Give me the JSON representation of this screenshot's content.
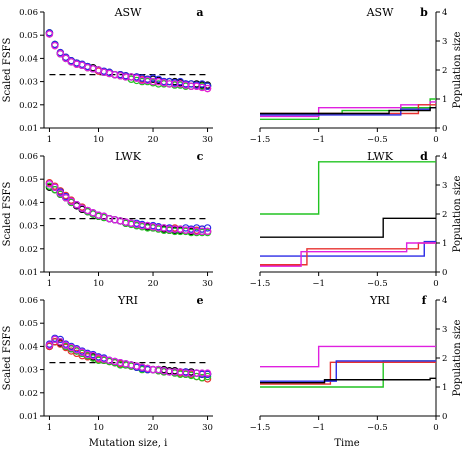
{
  "figure": {
    "left_ylabel": "Scaled FSFS",
    "right_ylabel": "Population size",
    "left_xlabel": "Mutation size, i",
    "right_xlabel": "Time"
  },
  "colors": {
    "red": "#e8312f",
    "green": "#22c422",
    "blue": "#2a2ae6",
    "magenta": "#e020e0",
    "black": "#000000"
  },
  "chart_data": [
    {
      "id": "a",
      "type": "scatter",
      "title": "ASW",
      "letter": "a",
      "xlim": [
        0,
        31
      ],
      "ylim": [
        0.01,
        0.06
      ],
      "xticks": [
        1,
        10,
        20,
        30
      ],
      "yticks": [
        0.01,
        0.02,
        0.03,
        0.04,
        0.05,
        0.06
      ],
      "reference_line": 0.033,
      "x": [
        1,
        2,
        3,
        4,
        5,
        6,
        7,
        8,
        9,
        10,
        11,
        12,
        13,
        14,
        15,
        16,
        17,
        18,
        19,
        20,
        21,
        22,
        23,
        24,
        25,
        26,
        27,
        28,
        29,
        30
      ],
      "series": [
        {
          "color": "black",
          "values": [
            0.051,
            0.046,
            0.042,
            0.04,
            0.039,
            0.038,
            0.037,
            0.0365,
            0.036,
            0.035,
            0.034,
            0.034,
            0.033,
            0.033,
            0.0325,
            0.032,
            0.032,
            0.0315,
            0.031,
            0.031,
            0.0305,
            0.03,
            0.03,
            0.03,
            0.0295,
            0.029,
            0.029,
            0.029,
            0.0285,
            0.0285
          ]
        },
        {
          "color": "red",
          "values": [
            0.0505,
            0.0455,
            0.0425,
            0.0405,
            0.0385,
            0.0375,
            0.037,
            0.036,
            0.0355,
            0.0345,
            0.034,
            0.0335,
            0.033,
            0.0325,
            0.032,
            0.032,
            0.0315,
            0.031,
            0.0305,
            0.03,
            0.03,
            0.0295,
            0.029,
            0.029,
            0.029,
            0.0285,
            0.028,
            0.028,
            0.0275,
            0.027
          ]
        },
        {
          "color": "green",
          "values": [
            0.051,
            0.046,
            0.042,
            0.04,
            0.0385,
            0.038,
            0.037,
            0.036,
            0.0355,
            0.035,
            0.034,
            0.0335,
            0.033,
            0.0325,
            0.032,
            0.031,
            0.0305,
            0.03,
            0.03,
            0.0295,
            0.029,
            0.029,
            0.029,
            0.0285,
            0.0285,
            0.028,
            0.028,
            0.0285,
            0.028,
            0.028
          ]
        },
        {
          "color": "blue",
          "values": [
            0.051,
            0.046,
            0.0425,
            0.0405,
            0.039,
            0.038,
            0.0375,
            0.0365,
            0.0355,
            0.035,
            0.0345,
            0.034,
            0.033,
            0.033,
            0.0325,
            0.032,
            0.032,
            0.0315,
            0.031,
            0.0315,
            0.031,
            0.03,
            0.03,
            0.0295,
            0.03,
            0.029,
            0.029,
            0.0285,
            0.029,
            0.028
          ]
        },
        {
          "color": "magenta",
          "values": [
            0.0505,
            0.0455,
            0.042,
            0.04,
            0.0385,
            0.0375,
            0.037,
            0.036,
            0.0355,
            0.035,
            0.034,
            0.0335,
            0.033,
            0.0325,
            0.032,
            0.032,
            0.0315,
            0.0305,
            0.0305,
            0.03,
            0.03,
            0.0295,
            0.029,
            0.029,
            0.029,
            0.0285,
            0.028,
            0.028,
            0.0275,
            0.027
          ]
        }
      ]
    },
    {
      "id": "b",
      "type": "step",
      "title": "ASW",
      "letter": "b",
      "xlim": [
        -1.5,
        0
      ],
      "ylim": [
        0,
        4
      ],
      "xticks": [
        -1.5,
        -1,
        -0.5,
        0
      ],
      "yticks": [
        0,
        1,
        2,
        3,
        4
      ],
      "series": [
        {
          "color": "green",
          "steps": [
            [
              -1.5,
              0.3
            ],
            [
              -1.0,
              0.5
            ],
            [
              -0.8,
              0.6
            ],
            [
              -0.5,
              0.6
            ],
            [
              -0.3,
              0.7
            ],
            [
              -0.05,
              1.0
            ]
          ]
        },
        {
          "color": "magenta",
          "steps": [
            [
              -1.5,
              0.4
            ],
            [
              -1.0,
              0.7
            ],
            [
              -0.3,
              0.8
            ],
            [
              -0.05,
              0.9
            ]
          ]
        },
        {
          "color": "red",
          "steps": [
            [
              -1.5,
              0.5
            ],
            [
              -0.65,
              0.5
            ],
            [
              -0.15,
              0.8
            ]
          ]
        },
        {
          "color": "blue",
          "steps": [
            [
              -1.5,
              0.45
            ],
            [
              -0.3,
              0.65
            ],
            [
              -0.05,
              0.7
            ]
          ]
        },
        {
          "color": "black",
          "steps": [
            [
              -1.5,
              0.5
            ],
            [
              -0.4,
              0.6
            ],
            [
              -0.05,
              0.7
            ]
          ]
        }
      ]
    },
    {
      "id": "c",
      "type": "scatter",
      "title": "LWK",
      "letter": "c",
      "xlim": [
        0,
        31
      ],
      "ylim": [
        0.01,
        0.06
      ],
      "xticks": [
        1,
        10,
        20,
        30
      ],
      "yticks": [
        0.01,
        0.02,
        0.03,
        0.04,
        0.05,
        0.06
      ],
      "reference_line": 0.033,
      "x": [
        1,
        2,
        3,
        4,
        5,
        6,
        7,
        8,
        9,
        10,
        11,
        12,
        13,
        14,
        15,
        16,
        17,
        18,
        19,
        20,
        21,
        22,
        23,
        24,
        25,
        26,
        27,
        28,
        29,
        30
      ],
      "series": [
        {
          "color": "black",
          "values": [
            0.0465,
            0.0455,
            0.0435,
            0.042,
            0.04,
            0.0385,
            0.037,
            0.036,
            0.035,
            0.034,
            0.0335,
            0.033,
            0.0325,
            0.032,
            0.031,
            0.031,
            0.03,
            0.03,
            0.0295,
            0.029,
            0.029,
            0.0285,
            0.028,
            0.028,
            0.028,
            0.028,
            0.0275,
            0.0275,
            0.0275,
            0.0275
          ]
        },
        {
          "color": "red",
          "values": [
            0.0485,
            0.047,
            0.045,
            0.043,
            0.041,
            0.039,
            0.038,
            0.0365,
            0.0355,
            0.0345,
            0.034,
            0.033,
            0.0325,
            0.032,
            0.0315,
            0.031,
            0.0305,
            0.03,
            0.03,
            0.0295,
            0.029,
            0.029,
            0.0285,
            0.029,
            0.0285,
            0.028,
            0.028,
            0.028,
            0.0285,
            0.0275
          ]
        },
        {
          "color": "green",
          "values": [
            0.047,
            0.0455,
            0.0435,
            0.042,
            0.04,
            0.039,
            0.0375,
            0.036,
            0.035,
            0.034,
            0.0335,
            0.033,
            0.0325,
            0.032,
            0.031,
            0.0305,
            0.03,
            0.0295,
            0.029,
            0.029,
            0.0285,
            0.028,
            0.028,
            0.0275,
            0.0275,
            0.0275,
            0.027,
            0.027,
            0.027,
            0.027
          ]
        },
        {
          "color": "blue",
          "values": [
            0.048,
            0.0465,
            0.0445,
            0.0425,
            0.0405,
            0.039,
            0.0375,
            0.0365,
            0.0355,
            0.0345,
            0.034,
            0.033,
            0.0325,
            0.032,
            0.0315,
            0.031,
            0.031,
            0.0305,
            0.03,
            0.03,
            0.0295,
            0.029,
            0.029,
            0.0285,
            0.0285,
            0.029,
            0.0285,
            0.029,
            0.0285,
            0.029
          ]
        },
        {
          "color": "magenta",
          "values": [
            0.048,
            0.0465,
            0.044,
            0.042,
            0.0405,
            0.039,
            0.0375,
            0.0365,
            0.0355,
            0.0345,
            0.034,
            0.033,
            0.0325,
            0.032,
            0.0315,
            0.031,
            0.0305,
            0.03,
            0.03,
            0.0295,
            0.029,
            0.029,
            0.0285,
            0.0285,
            0.0285,
            0.028,
            0.028,
            0.0275,
            0.0275,
            0.0275
          ]
        }
      ]
    },
    {
      "id": "d",
      "type": "step",
      "title": "LWK",
      "letter": "d",
      "xlim": [
        -1.5,
        0
      ],
      "ylim": [
        0,
        4
      ],
      "xticks": [
        -1.5,
        -1,
        -0.5,
        0
      ],
      "yticks": [
        0,
        1,
        2,
        3,
        4
      ],
      "series": [
        {
          "color": "green",
          "steps": [
            [
              -1.5,
              2.0
            ],
            [
              -1.0,
              3.8
            ],
            [
              -0.05,
              3.8
            ]
          ]
        },
        {
          "color": "black",
          "steps": [
            [
              -1.5,
              1.2
            ],
            [
              -0.45,
              1.85
            ],
            [
              -0.05,
              1.85
            ]
          ]
        },
        {
          "color": "blue",
          "steps": [
            [
              -1.5,
              0.55
            ],
            [
              -1.05,
              0.55
            ],
            [
              -0.1,
              1.05
            ]
          ]
        },
        {
          "color": "red",
          "steps": [
            [
              -1.5,
              0.25
            ],
            [
              -1.1,
              0.8
            ],
            [
              -0.15,
              1.0
            ]
          ]
        },
        {
          "color": "magenta",
          "steps": [
            [
              -1.5,
              0.2
            ],
            [
              -1.15,
              0.7
            ],
            [
              -0.25,
              1.0
            ]
          ]
        }
      ]
    },
    {
      "id": "e",
      "type": "scatter",
      "title": "YRI",
      "letter": "e",
      "xlim": [
        0,
        31
      ],
      "ylim": [
        0.01,
        0.06
      ],
      "xticks": [
        1,
        10,
        20,
        30
      ],
      "yticks": [
        0.01,
        0.02,
        0.03,
        0.04,
        0.05,
        0.06
      ],
      "reference_line": 0.033,
      "x": [
        1,
        2,
        3,
        4,
        5,
        6,
        7,
        8,
        9,
        10,
        11,
        12,
        13,
        14,
        15,
        16,
        17,
        18,
        19,
        20,
        21,
        22,
        23,
        24,
        25,
        26,
        27,
        28,
        29,
        30
      ],
      "series": [
        {
          "color": "black",
          "values": [
            0.04,
            0.042,
            0.0415,
            0.04,
            0.039,
            0.038,
            0.037,
            0.036,
            0.0355,
            0.035,
            0.034,
            0.0335,
            0.033,
            0.0325,
            0.032,
            0.032,
            0.0315,
            0.031,
            0.0305,
            0.03,
            0.03,
            0.03,
            0.0295,
            0.0295,
            0.029,
            0.029,
            0.029,
            0.0285,
            0.028,
            0.028
          ]
        },
        {
          "color": "red",
          "values": [
            0.04,
            0.042,
            0.041,
            0.0395,
            0.038,
            0.037,
            0.036,
            0.0355,
            0.035,
            0.0345,
            0.034,
            0.0335,
            0.033,
            0.0325,
            0.032,
            0.0315,
            0.031,
            0.0305,
            0.03,
            0.03,
            0.0295,
            0.029,
            0.029,
            0.029,
            0.0285,
            0.028,
            0.028,
            0.027,
            0.0265,
            0.026
          ]
        },
        {
          "color": "green",
          "values": [
            0.0405,
            0.043,
            0.042,
            0.04,
            0.039,
            0.038,
            0.037,
            0.036,
            0.035,
            0.034,
            0.034,
            0.0335,
            0.033,
            0.032,
            0.032,
            0.0315,
            0.031,
            0.03,
            0.03,
            0.03,
            0.0295,
            0.029,
            0.029,
            0.0285,
            0.028,
            0.028,
            0.0275,
            0.027,
            0.0265,
            0.027
          ]
        },
        {
          "color": "blue",
          "values": [
            0.041,
            0.0435,
            0.043,
            0.041,
            0.04,
            0.039,
            0.038,
            0.037,
            0.0365,
            0.0355,
            0.035,
            0.034,
            0.0335,
            0.033,
            0.0325,
            0.032,
            0.031,
            0.0305,
            0.03,
            0.03,
            0.03,
            0.0295,
            0.029,
            0.029,
            0.029,
            0.029,
            0.0285,
            0.0285,
            0.028,
            0.028
          ]
        },
        {
          "color": "magenta",
          "values": [
            0.0405,
            0.043,
            0.042,
            0.0405,
            0.0395,
            0.0385,
            0.0375,
            0.0365,
            0.036,
            0.035,
            0.0345,
            0.034,
            0.0335,
            0.033,
            0.0325,
            0.032,
            0.0315,
            0.031,
            0.0305,
            0.03,
            0.03,
            0.0295,
            0.029,
            0.029,
            0.029,
            0.0285,
            0.0285,
            0.0285,
            0.0285,
            0.0285
          ]
        }
      ]
    },
    {
      "id": "f",
      "type": "step",
      "title": "YRI",
      "letter": "f",
      "xlim": [
        -1.5,
        0
      ],
      "ylim": [
        0,
        4
      ],
      "xticks": [
        -1.5,
        -1,
        -0.5,
        0
      ],
      "yticks": [
        0,
        1,
        2,
        3,
        4
      ],
      "series": [
        {
          "color": "magenta",
          "steps": [
            [
              -1.5,
              1.7
            ],
            [
              -1.0,
              2.4
            ],
            [
              -0.05,
              2.4
            ]
          ]
        },
        {
          "color": "green",
          "steps": [
            [
              -1.5,
              1.0
            ],
            [
              -1.0,
              1.0
            ],
            [
              -0.45,
              1.9
            ],
            [
              -0.05,
              1.9
            ]
          ]
        },
        {
          "color": "red",
          "steps": [
            [
              -1.5,
              1.1
            ],
            [
              -1.0,
              1.1
            ],
            [
              -0.9,
              1.85
            ],
            [
              -0.05,
              1.85
            ]
          ]
        },
        {
          "color": "blue",
          "steps": [
            [
              -1.5,
              1.2
            ],
            [
              -0.85,
              1.9
            ],
            [
              -0.05,
              1.9
            ]
          ]
        },
        {
          "color": "black",
          "steps": [
            [
              -1.5,
              1.15
            ],
            [
              -0.95,
              1.25
            ],
            [
              -0.05,
              1.3
            ]
          ]
        }
      ]
    }
  ]
}
